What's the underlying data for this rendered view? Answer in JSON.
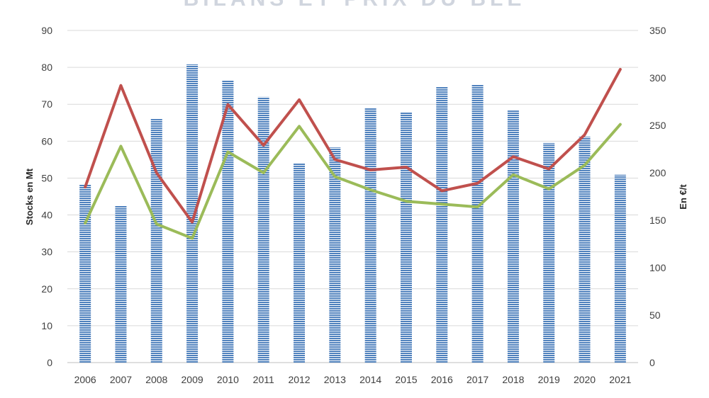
{
  "chart_data": {
    "type": "bar",
    "title": "BILANS ET PRIX DU BLÉ",
    "categories": [
      "2006",
      "2007",
      "2008",
      "2009",
      "2010",
      "2011",
      "2012",
      "2013",
      "2014",
      "2015",
      "2016",
      "2017",
      "2018",
      "2019",
      "2020",
      "2021"
    ],
    "ylabel_left": "Stocks en Mt",
    "ylabel_right": "En €/t",
    "ylim_left": [
      0,
      90
    ],
    "ylim_right": [
      0,
      350
    ],
    "yticks_left": [
      0,
      10,
      20,
      30,
      40,
      50,
      60,
      70,
      80,
      90
    ],
    "yticks_right": [
      0,
      50,
      100,
      150,
      200,
      250,
      300,
      350
    ],
    "grid": true,
    "series": [
      {
        "type": "bar",
        "axis": "left",
        "color": "#4f81bd",
        "values": [
          48.3,
          42.6,
          66,
          80.8,
          76.5,
          72,
          54,
          58.3,
          69,
          67.8,
          74.7,
          75.3,
          68.3,
          59.5,
          61.2,
          50.9
        ]
      },
      {
        "type": "line",
        "axis": "right",
        "color": "#c0504d",
        "values": [
          185,
          292,
          200,
          148,
          272,
          229,
          277,
          214,
          203,
          206,
          181,
          189,
          217,
          204,
          240,
          309
        ]
      },
      {
        "type": "line",
        "axis": "right",
        "color": "#9bbb59",
        "values": [
          147,
          228,
          146,
          131,
          222,
          200,
          249,
          196,
          182,
          170,
          167,
          164,
          198,
          183,
          208,
          251
        ]
      }
    ]
  }
}
